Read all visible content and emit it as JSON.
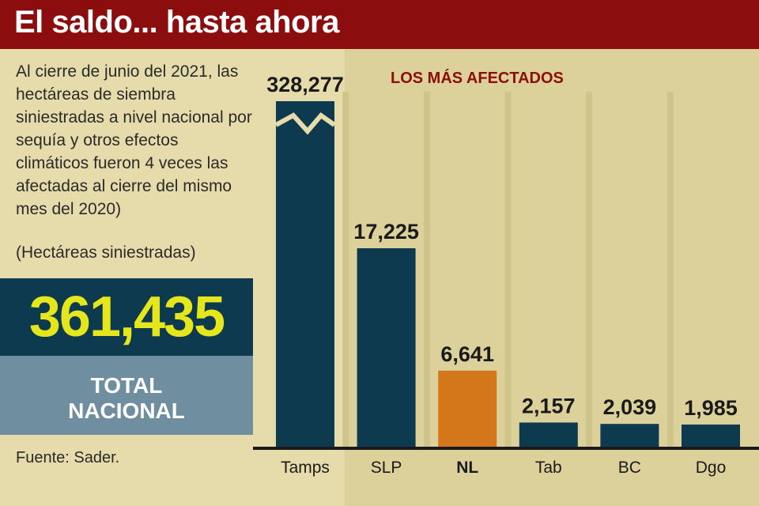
{
  "header": {
    "title": "El saldo... hasta ahora"
  },
  "sidebar": {
    "description": "Al cierre de junio del 2021, las hectáreas de siembra siniestradas a nivel nacional por sequía y otros efectos climáticos fueron 4 veces las afectadas al cierre del mismo mes del 2020)",
    "units": "(Hectáreas siniestradas)",
    "total_value": "361,435",
    "total_label_line1": "TOTAL",
    "total_label_line2": "NACIONAL",
    "source": "Fuente: Sader."
  },
  "colors": {
    "header": "#8b0d0d",
    "bar": "#0e3a50",
    "highlight": "#d4761a",
    "total_value": "#e5e61c"
  },
  "chart_data": {
    "type": "bar",
    "title": "LOS MÁS AFECTADOS",
    "categories": [
      "Tamps",
      "SLP",
      "NL",
      "Tab",
      "BC",
      "Dgo"
    ],
    "values": [
      328277,
      17225,
      6641,
      2157,
      2039,
      1985
    ],
    "value_labels": [
      "328,277",
      "17,225",
      "6,641",
      "2,157",
      "2,039",
      "1,985"
    ],
    "highlight": "NL",
    "axis_break": "Tamps",
    "ylim": [
      0,
      28000
    ],
    "grid": false,
    "legend": "none"
  }
}
